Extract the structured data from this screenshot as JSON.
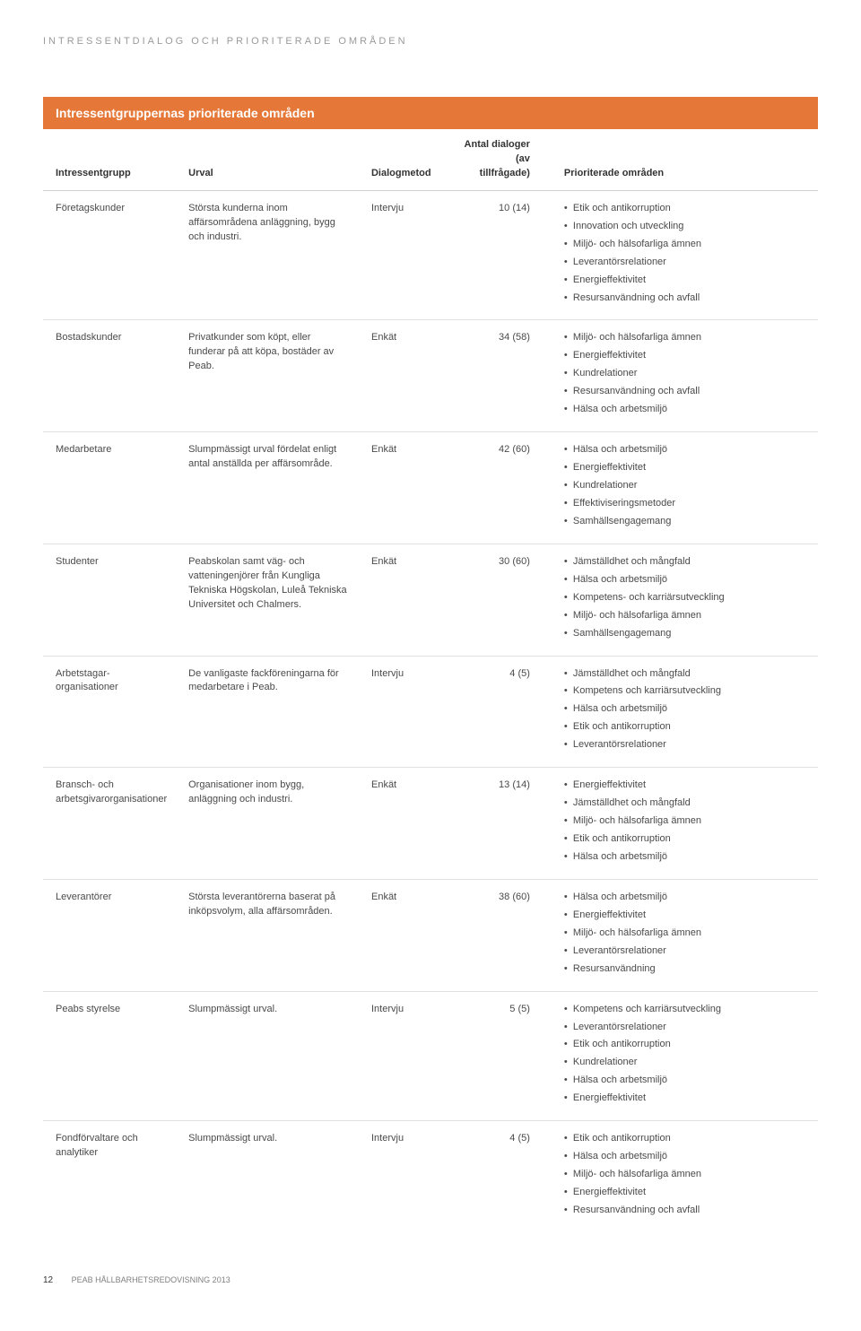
{
  "section_heading": "INTRESSENTDIALOG OCH PRIORITERADE OMRÅDEN",
  "table": {
    "title": "Intressentgruppernas prioriterade områden",
    "columns": {
      "group": "Intressentgrupp",
      "urval": "Urval",
      "method": "Dialogmetod",
      "count": "Antal dialoger (av tillfrågade)",
      "areas": "Prioriterade områden"
    },
    "rows": [
      {
        "group": "Företagskunder",
        "urval": "Största kunderna inom affärsområdena anläggning, bygg och industri.",
        "method": "Intervju",
        "count": "10 (14)",
        "areas": [
          "Etik och antikorruption",
          "Innovation och utveckling",
          "Miljö- och hälsofarliga ämnen",
          "Leverantörsrelationer",
          "Energieffektivitet",
          "Resursanvändning och avfall"
        ]
      },
      {
        "group": "Bostadskunder",
        "urval": "Privatkunder som köpt, eller funderar på att köpa, bostäder av Peab.",
        "method": "Enkät",
        "count": "34 (58)",
        "areas": [
          "Miljö- och hälsofarliga ämnen",
          "Energieffektivitet",
          "Kundrelationer",
          "Resursanvändning och avfall",
          "Hälsa och arbetsmiljö"
        ]
      },
      {
        "group": "Medarbetare",
        "urval": "Slumpmässigt urval fördelat enligt antal anställda per affärsområde.",
        "method": "Enkät",
        "count": "42 (60)",
        "areas": [
          "Hälsa och arbetsmiljö",
          "Energieffektivitet",
          "Kundrelationer",
          "Effektiviseringsmetoder",
          "Samhällsengagemang"
        ]
      },
      {
        "group": "Studenter",
        "urval": "Peabskolan samt väg- och vatteningenjörer från Kungliga Tekniska Högskolan, Luleå Tekniska Universitet och Chalmers.",
        "method": "Enkät",
        "count": "30 (60)",
        "areas": [
          "Jämställdhet och mångfald",
          "Hälsa och arbetsmiljö",
          "Kompetens- och karriärsutveckling",
          "Miljö- och hälsofarliga ämnen",
          "Samhällsengagemang"
        ]
      },
      {
        "group": "Arbetstagar­organisationer",
        "urval": "De vanligaste fackföreningarna för medarbetare i Peab.",
        "method": "Intervju",
        "count": "4 (5)",
        "areas": [
          "Jämställdhet och mångfald",
          "Kompetens och karriärsutveckling",
          "Hälsa och arbetsmiljö",
          "Etik och antikorruption",
          "Leverantörsrelationer"
        ]
      },
      {
        "group": "Bransch- och arbetsgivarorganisationer",
        "urval": "Organisationer inom bygg, anläggning och industri.",
        "method": "Enkät",
        "count": "13 (14)",
        "areas": [
          "Energieffektivitet",
          "Jämställdhet och mångfald",
          "Miljö- och hälsofarliga ämnen",
          "Etik och antikorruption",
          "Hälsa och arbetsmiljö"
        ]
      },
      {
        "group": "Leverantörer",
        "urval": "Största leverantörerna baserat på inköpsvolym, alla affärsområden.",
        "method": "Enkät",
        "count": "38 (60)",
        "areas": [
          "Hälsa och arbetsmiljö",
          "Energieffektivitet",
          "Miljö- och hälsofarliga ämnen",
          "Leverantörsrelationer",
          "Resursanvändning"
        ]
      },
      {
        "group": "Peabs styrelse",
        "urval": "Slumpmässigt urval.",
        "method": "Intervju",
        "count": "5 (5)",
        "areas": [
          "Kompetens och karriärsutveckling",
          "Leverantörsrelationer",
          "Etik och antikorruption",
          "Kundrelationer",
          "Hälsa och arbetsmiljö",
          "Energieffektivitet"
        ]
      },
      {
        "group": "Fondförvaltare och analytiker",
        "urval": "Slumpmässigt urval.",
        "method": "Intervju",
        "count": "4 (5)",
        "areas": [
          "Etik och antikorruption",
          "Hälsa och arbetsmiljö",
          "Miljö- och hälsofarliga ämnen",
          "Energieffektivitet",
          "Resursanvändning och avfall"
        ]
      }
    ]
  },
  "footer": {
    "page": "12",
    "doc": "PEAB HÅLLBARHETSREDOVISNING 2013"
  },
  "colors": {
    "accent": "#e57838",
    "text": "#333333",
    "muted": "#9a9a9a",
    "border": "#e0e0e0"
  }
}
